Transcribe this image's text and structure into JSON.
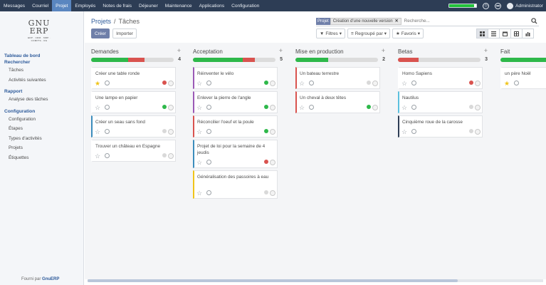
{
  "topbar": {
    "menu": [
      {
        "label": "Messages",
        "active": false
      },
      {
        "label": "Courriel",
        "active": false
      },
      {
        "label": "Projet",
        "active": true
      },
      {
        "label": "Employés",
        "active": false
      },
      {
        "label": "Notes de frais",
        "active": false
      },
      {
        "label": "Déjeuner",
        "active": false
      },
      {
        "label": "Maintenance",
        "active": false
      },
      {
        "label": "Applications",
        "active": false
      },
      {
        "label": "Configuration",
        "active": false
      }
    ],
    "progress_fraction": 0.92,
    "user": "Administrator"
  },
  "sidebar": {
    "logo_line1": "GNU",
    "logo_line2": "ERP",
    "logo_line3": "ERP · CRM · MRP · COMPTA · RH",
    "sections": [
      {
        "header": "Tableau de bord",
        "items": []
      },
      {
        "header": "Rechercher",
        "items": [
          "Tâches",
          "Activités suivantes"
        ]
      },
      {
        "header": "Rapport",
        "items": [
          "Analyse des tâches"
        ]
      },
      {
        "header": "Configuration",
        "items": [
          "Configuration",
          "Étapes",
          "Types d'activités",
          "Projets",
          "Étiquettes"
        ]
      }
    ],
    "footer_prefix": "Fourni par",
    "footer_brand": "GnuERP"
  },
  "main": {
    "breadcrumb_parent": "Projets",
    "breadcrumb_sep": "/",
    "breadcrumb_current": "Tâches",
    "create_label": "Créer",
    "import_label": "Importer",
    "search": {
      "facet_label": "Projet",
      "facet_value": "Création d'une nouvelle version",
      "placeholder": "Recherche..."
    },
    "filters_label": "Filtres",
    "groupby_label": "Regroupé par",
    "favorites_label": "Favoris"
  },
  "kanban": {
    "columns": [
      {
        "title": "Demandes",
        "count": "4",
        "green": 0.45,
        "red": 0.2,
        "cards": [
          {
            "title": "Créer une table ronde",
            "starred": true,
            "status": "red",
            "tall": false,
            "border": "#ffffff"
          },
          {
            "title": "Une lampe en papier",
            "starred": false,
            "status": "green",
            "tall": false,
            "border": "#ffffff"
          },
          {
            "title": "Créer un seau sans fond",
            "starred": false,
            "status": "grey",
            "tall": false,
            "border": "#3c8dbc"
          },
          {
            "title": "Trouver un château en Espagne",
            "starred": false,
            "status": "grey",
            "tall": false,
            "border": "#ffffff"
          }
        ]
      },
      {
        "title": "Acceptation",
        "count": "5",
        "green": 0.6,
        "red": 0.15,
        "cards": [
          {
            "title": "Réinventer le vélo",
            "starred": false,
            "status": "green",
            "tall": false,
            "border": "#9b59b6"
          },
          {
            "title": "Enlever la pierre de l'angle",
            "starred": false,
            "status": "green",
            "tall": false,
            "border": "#9b59b6"
          },
          {
            "title": "Réconcilier l'oeuf et la poule",
            "starred": false,
            "status": "green",
            "tall": false,
            "border": "#d9534f"
          },
          {
            "title": "Projet de loi pour la semaine de 4 jeudis",
            "starred": false,
            "status": "red",
            "tall": true,
            "border": "#3c8dbc"
          },
          {
            "title": "Généralisation des passoires à eau",
            "starred": false,
            "status": "grey",
            "tall": true,
            "border": "#f0c419"
          }
        ]
      },
      {
        "title": "Mise en production",
        "count": "2",
        "green": 0.4,
        "red": 0.0,
        "cards": [
          {
            "title": "Un bateau terrestre",
            "starred": false,
            "status": "grey",
            "tall": false,
            "border": "#d9534f"
          },
          {
            "title": "Un cheval à deux têtes",
            "starred": false,
            "status": "green",
            "tall": false,
            "border": "#d9534f"
          }
        ]
      },
      {
        "title": "Betas",
        "count": "3",
        "green": 0.0,
        "red": 0.25,
        "cards": [
          {
            "title": "Homo Sapiens",
            "starred": false,
            "status": "red",
            "tall": false,
            "border": "#ffffff"
          },
          {
            "title": "Nautilus",
            "starred": false,
            "status": "grey",
            "tall": false,
            "border": "#5bc0de"
          },
          {
            "title": "Cinquième roue de la carosse",
            "starred": false,
            "status": "grey",
            "tall": false,
            "border": "#2d3d55"
          }
        ]
      },
      {
        "title": "Fait",
        "count": "",
        "green": 1.0,
        "red": 0.0,
        "cards": [
          {
            "title": "un père Noël",
            "starred": true,
            "status": "grey",
            "tall": false,
            "border": "#ffffff"
          }
        ]
      }
    ]
  }
}
